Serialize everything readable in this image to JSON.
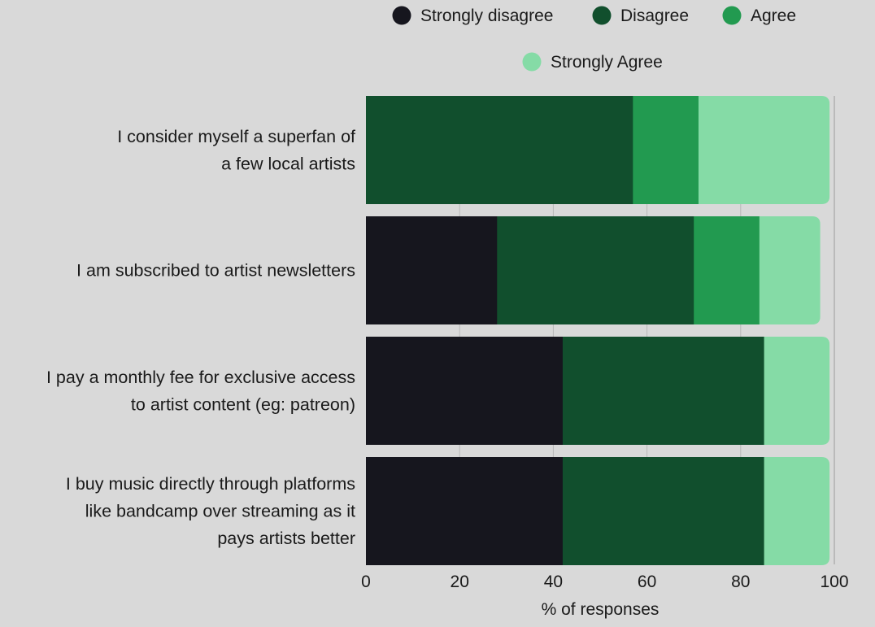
{
  "chart_data": {
    "type": "bar",
    "orientation": "horizontal",
    "stacked": true,
    "categories": [
      [
        "I consider myself a superfan of",
        "a few local artists"
      ],
      [
        "I am subscribed to artist newsletters"
      ],
      [
        "I pay a monthly fee for exclusive access",
        "to artist content (eg: patreon)"
      ],
      [
        "I buy music directly through platforms",
        "like bandcamp over streaming as it",
        "pays artists better"
      ]
    ],
    "series": [
      {
        "name": "Strongly disagree",
        "color": "#16161e",
        "values": [
          0,
          28,
          42,
          42
        ]
      },
      {
        "name": "Disagree",
        "color": "#114f2d",
        "values": [
          57,
          42,
          43,
          43
        ]
      },
      {
        "name": "Agree",
        "color": "#229a50",
        "values": [
          14,
          14,
          0,
          0
        ]
      },
      {
        "name": "Strongly Agree",
        "color": "#85dba6",
        "values": [
          28,
          13,
          14,
          14
        ]
      }
    ],
    "xlabel": "% of responses",
    "xlim": [
      0,
      100
    ],
    "xticks": [
      0,
      20,
      40,
      60,
      80,
      100
    ],
    "grid": "vertical",
    "legend": "top"
  }
}
